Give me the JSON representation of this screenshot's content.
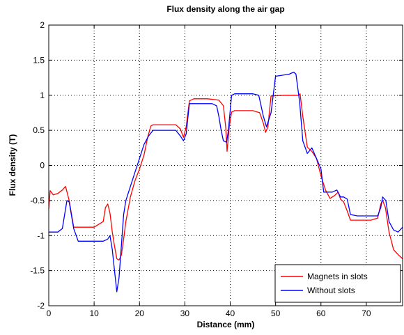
{
  "chart_data": {
    "type": "line",
    "title": "Flux density along the air gap",
    "xlabel": "Distance (mm)",
    "ylabel": "Flux density (T)",
    "xlim": [
      0,
      78
    ],
    "ylim": [
      -2,
      2
    ],
    "xticks": [
      0,
      10,
      20,
      30,
      40,
      50,
      60,
      70
    ],
    "yticks": [
      -2,
      -1.5,
      -1,
      -0.5,
      0,
      0.5,
      1,
      1.5,
      2
    ],
    "xtick_labels": [
      "0",
      "10",
      "20",
      "30",
      "40",
      "50",
      "60",
      "70"
    ],
    "ytick_labels": [
      "-2",
      "-1.5",
      "-1",
      "-0.5",
      "0",
      "0.5",
      "1",
      "1.5",
      "2"
    ],
    "grid": true,
    "legend_position": "bottom-right",
    "series": [
      {
        "name": "Magnets in slots",
        "color": "#ff0000",
        "x": [
          0,
          0.3,
          1,
          2,
          3,
          3.7,
          4.5,
          5.5,
          6.5,
          8,
          10,
          12,
          12.5,
          13,
          13.5,
          14,
          14.5,
          15,
          15.5,
          16,
          16.5,
          17,
          18,
          19,
          20,
          21,
          21.8,
          22.5,
          23,
          25,
          28,
          29,
          29.7,
          30.3,
          31,
          32,
          35,
          37.5,
          38.5,
          39,
          39.3,
          39.8,
          40.3,
          41,
          45,
          46.5,
          47.3,
          47.8,
          48.3,
          49,
          52,
          55,
          55.4,
          56,
          57,
          58,
          59,
          60,
          61,
          62,
          63,
          63.8,
          64.3,
          65,
          65.8,
          66.5,
          68,
          71,
          72.5,
          73.2,
          73.6,
          74.2,
          75,
          76,
          77,
          78
        ],
        "y": [
          -0.62,
          -0.36,
          -0.42,
          -0.4,
          -0.35,
          -0.3,
          -0.5,
          -0.88,
          -0.88,
          -0.88,
          -0.88,
          -0.8,
          -0.6,
          -0.55,
          -0.68,
          -0.95,
          -1.15,
          -1.33,
          -1.35,
          -1.28,
          -1.05,
          -0.8,
          -0.45,
          -0.22,
          -0.05,
          0.15,
          0.4,
          0.56,
          0.58,
          0.58,
          0.58,
          0.52,
          0.4,
          0.55,
          0.92,
          0.95,
          0.95,
          0.93,
          0.85,
          0.55,
          0.2,
          0.55,
          0.76,
          0.78,
          0.78,
          0.75,
          0.6,
          0.47,
          0.55,
          0.99,
          1.0,
          1.0,
          1.02,
          0.7,
          0.26,
          0.2,
          0.1,
          -0.15,
          -0.35,
          -0.47,
          -0.43,
          -0.38,
          -0.48,
          -0.52,
          -0.65,
          -0.78,
          -0.78,
          -0.78,
          -0.75,
          -0.55,
          -0.5,
          -0.6,
          -0.95,
          -1.2,
          -1.27,
          -1.33
        ]
      },
      {
        "name": "Without slots",
        "color": "#0000ff",
        "x": [
          0,
          2,
          3,
          3.5,
          4,
          4.5,
          5.5,
          6.5,
          9,
          11,
          12,
          13,
          13.5,
          14,
          14.5,
          15,
          15.5,
          16,
          16.5,
          17,
          18,
          19,
          20,
          21,
          22,
          23,
          25,
          28,
          29,
          29.7,
          30.3,
          31,
          34,
          36,
          37,
          37.5,
          38,
          38.5,
          39.2,
          39.6,
          40.3,
          41,
          45,
          46.3,
          47.3,
          48,
          49,
          50,
          53,
          54,
          54.5,
          55.3,
          56,
          57,
          58,
          59,
          60,
          60.6,
          61.5,
          62.5,
          63.5,
          64.3,
          65,
          65.8,
          66.5,
          68,
          71,
          72.5,
          73.2,
          73.6,
          74.3,
          75,
          76,
          77,
          78
        ],
        "y": [
          -0.95,
          -0.95,
          -0.9,
          -0.7,
          -0.5,
          -0.52,
          -0.9,
          -1.08,
          -1.08,
          -1.08,
          -1.08,
          -1.05,
          -1.0,
          -1.2,
          -1.5,
          -1.8,
          -1.6,
          -1.15,
          -0.7,
          -0.5,
          -0.3,
          -0.1,
          0.1,
          0.3,
          0.42,
          0.5,
          0.5,
          0.5,
          0.42,
          0.35,
          0.45,
          0.88,
          0.88,
          0.88,
          0.85,
          0.7,
          0.5,
          0.35,
          0.33,
          0.5,
          1.0,
          1.02,
          1.02,
          1.0,
          0.7,
          0.55,
          0.75,
          1.27,
          1.3,
          1.33,
          1.3,
          0.9,
          0.35,
          0.17,
          0.25,
          0.1,
          -0.05,
          -0.38,
          -0.38,
          -0.38,
          -0.35,
          -0.45,
          -0.45,
          -0.48,
          -0.7,
          -0.72,
          -0.72,
          -0.72,
          -0.6,
          -0.45,
          -0.5,
          -0.8,
          -0.92,
          -0.95,
          -0.88
        ]
      }
    ]
  }
}
